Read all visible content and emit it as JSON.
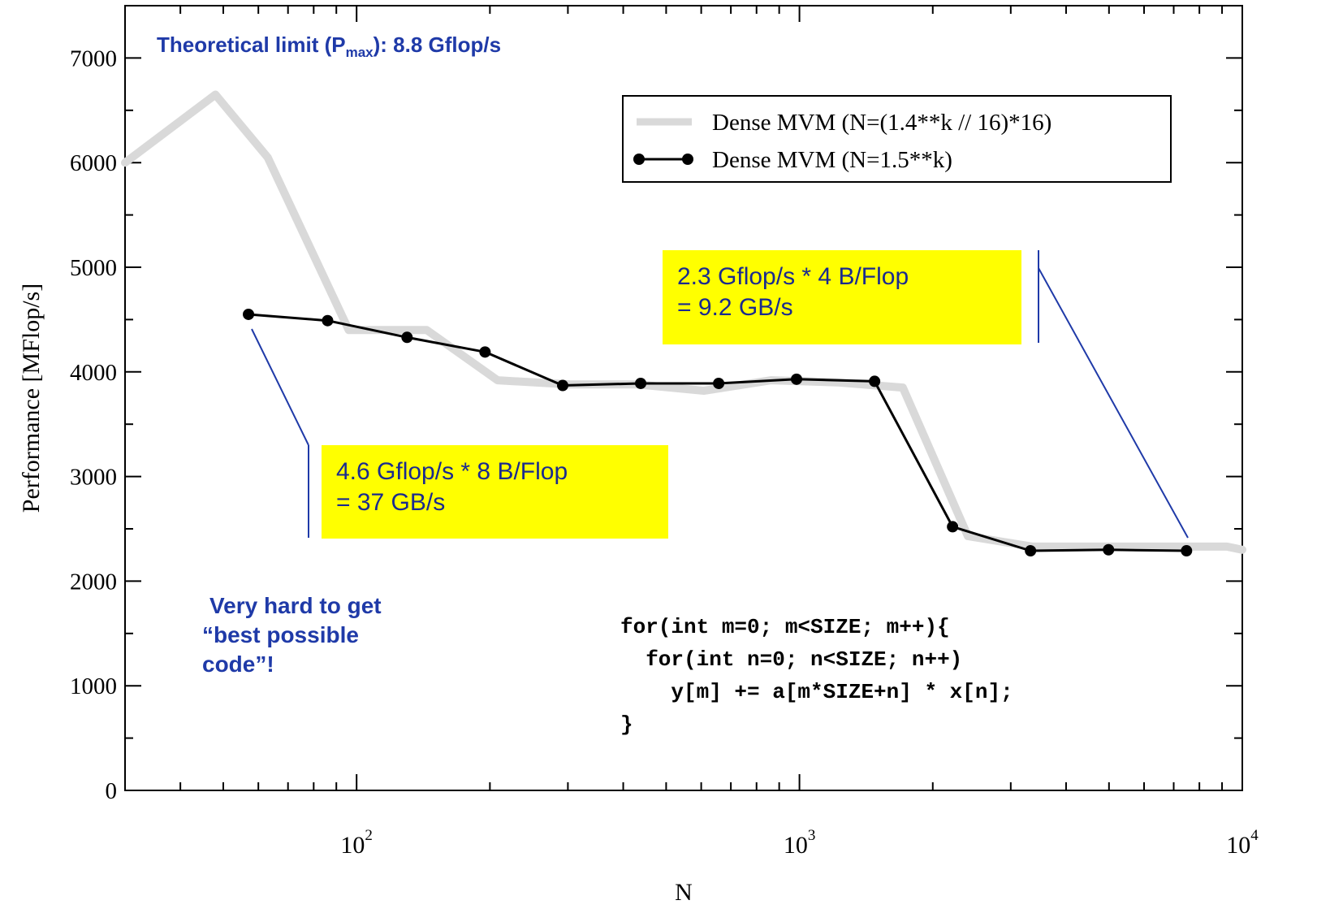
{
  "chart_data": {
    "type": "line",
    "xlabel": "N",
    "ylabel": "Performance [MFlop/s]",
    "xscale": "log",
    "xlim": [
      30,
      10000
    ],
    "ylim": [
      0,
      7500
    ],
    "y_ticks": [
      0,
      1000,
      2000,
      3000,
      4000,
      5000,
      6000,
      7000
    ],
    "x_tick_labels": [
      {
        "value": 100,
        "base": "10",
        "exp": "2"
      },
      {
        "value": 1000,
        "base": "10",
        "exp": "3"
      },
      {
        "value": 10000,
        "base": "10",
        "exp": "4"
      }
    ],
    "grid": false,
    "legend_position": "top-right",
    "series": [
      {
        "name": "Dense MVM (N=(1.4**k // 16)*16)",
        "color": "#d9d9d9",
        "marker": "none",
        "x": [
          30,
          48,
          63,
          96,
          144,
          208,
          304,
          432,
          608,
          864,
          1216,
          1712,
          2400,
          3360,
          4704,
          6592,
          9232,
          10000
        ],
        "y": [
          6000,
          6650,
          6050,
          4400,
          4400,
          3920,
          3880,
          3880,
          3820,
          3920,
          3900,
          3850,
          2430,
          2330,
          2330,
          2330,
          2330,
          2300
        ]
      },
      {
        "name": "Dense MVM (N=1.5**k)",
        "color": "#000000",
        "marker": "circle",
        "x": [
          57,
          86,
          130,
          195,
          292,
          438,
          657,
          985,
          1478,
          2217,
          3325,
          4988,
          7482
        ],
        "y": [
          4550,
          4490,
          4330,
          4190,
          3870,
          3890,
          3890,
          3930,
          3910,
          2520,
          2290,
          2300,
          2290
        ]
      }
    ]
  },
  "annotations": {
    "theoretical_prefix": "Theoretical limit (P",
    "theoretical_sub": "max",
    "theoretical_suffix": "): 8.8 Gflop/s",
    "box_left_line1": "4.6 Gflop/s * 8 B/Flop",
    "box_left_line2": "= 37 GB/s",
    "box_right_line1": "2.3 Gflop/s * 4 B/Flop",
    "box_right_line2": "= 9.2 GB/s",
    "hard_line1": "Very hard to get",
    "hard_line2": "“best possible",
    "hard_line3": "code”!",
    "code_line1": "for(int m=0; m<SIZE; m++){",
    "code_line2": "  for(int n=0; n<SIZE; n++)",
    "code_line3": "    y[m] += a[m*SIZE+n] * x[n];",
    "code_line4": "}"
  },
  "colors": {
    "annotation_text": "#1f3aa8",
    "highlight_box": "#ffff00",
    "connector": "#1f3aa8"
  }
}
